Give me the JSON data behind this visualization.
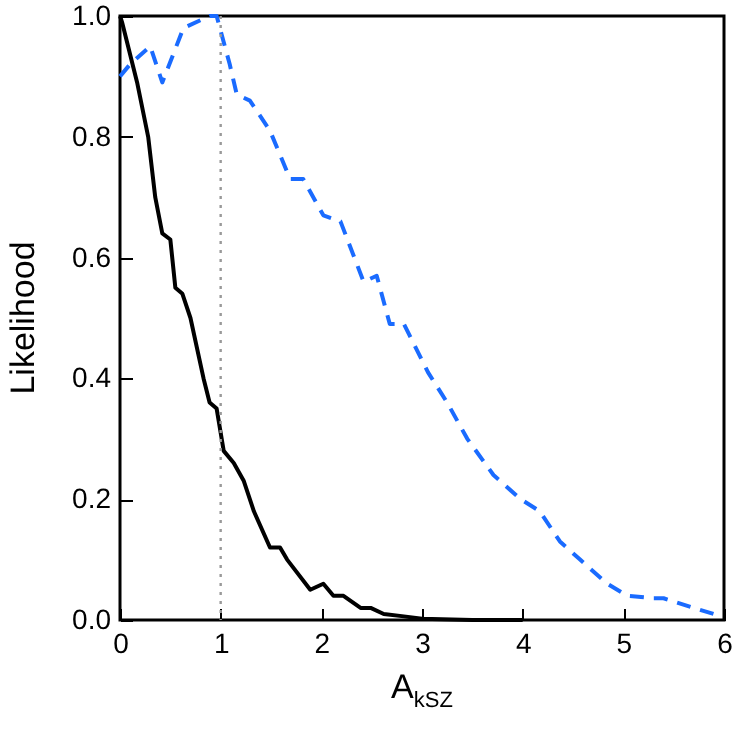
{
  "chart_data": {
    "type": "line",
    "xlabel": "A$_{kSZ}$",
    "ylabel": "Likelihood",
    "xlim": [
      0,
      6
    ],
    "xticks": [
      0,
      1,
      2,
      3,
      4,
      5,
      6
    ],
    "ylim": [
      0,
      1
    ],
    "yticks": [
      {
        "value": 0,
        "label": "0.0"
      },
      {
        "value": 0.2,
        "label": "0.2"
      },
      {
        "value": 0.4,
        "label": "0.4"
      },
      {
        "value": 0.6,
        "label": "0.6"
      },
      {
        "value": 0.8,
        "label": "0.8"
      },
      {
        "value": 1,
        "label": "1.0"
      }
    ],
    "grid": false,
    "marker": "none",
    "ref_lines": [
      {
        "axis": "x",
        "value": 1,
        "color": "#999999",
        "line_style": "dotted"
      }
    ],
    "series": [
      {
        "color": "#000000",
        "line_style": "solid",
        "x": [
          0,
          0.02,
          0.17,
          0.28,
          0.35,
          0.42,
          0.5,
          0.55,
          0.62,
          0.7,
          0.83,
          0.89,
          0.96,
          1.03,
          1.13,
          1.23,
          1.33,
          1.49,
          1.59,
          1.66,
          1.89,
          2.02,
          2.12,
          2.22,
          2.39,
          2.49,
          2.62,
          2.82,
          3,
          3.5,
          4
        ],
        "values": [
          1,
          0.99,
          0.89,
          0.8,
          0.7,
          0.64,
          0.63,
          0.55,
          0.54,
          0.5,
          0.4,
          0.36,
          0.35,
          0.28,
          0.26,
          0.23,
          0.18,
          0.12,
          0.12,
          0.1,
          0.05,
          0.06,
          0.04,
          0.04,
          0.02,
          0.02,
          0.01,
          0.006,
          0.002,
          0,
          0
        ]
      },
      {
        "color": "#1a6bff",
        "line_style": "dashed",
        "x": [
          0,
          0.1,
          0.3,
          0.42,
          0.63,
          0.89,
          0.96,
          1.09,
          1.16,
          1.29,
          1.49,
          1.69,
          1.82,
          2.02,
          2.19,
          2.42,
          2.55,
          2.68,
          2.82,
          3.06,
          3.25,
          3.45,
          3.71,
          3.98,
          4.17,
          4.37,
          4.57,
          4.84,
          5.04,
          5.3,
          5.4,
          5.7,
          5.9
        ],
        "values": [
          0.9,
          0.92,
          0.95,
          0.89,
          0.98,
          1,
          1,
          0.92,
          0.87,
          0.86,
          0.81,
          0.73,
          0.73,
          0.67,
          0.66,
          0.56,
          0.57,
          0.49,
          0.49,
          0.41,
          0.36,
          0.3,
          0.24,
          0.2,
          0.18,
          0.13,
          0.1,
          0.06,
          0.04,
          0.036,
          0.036,
          0.02,
          0.01
        ]
      }
    ]
  }
}
